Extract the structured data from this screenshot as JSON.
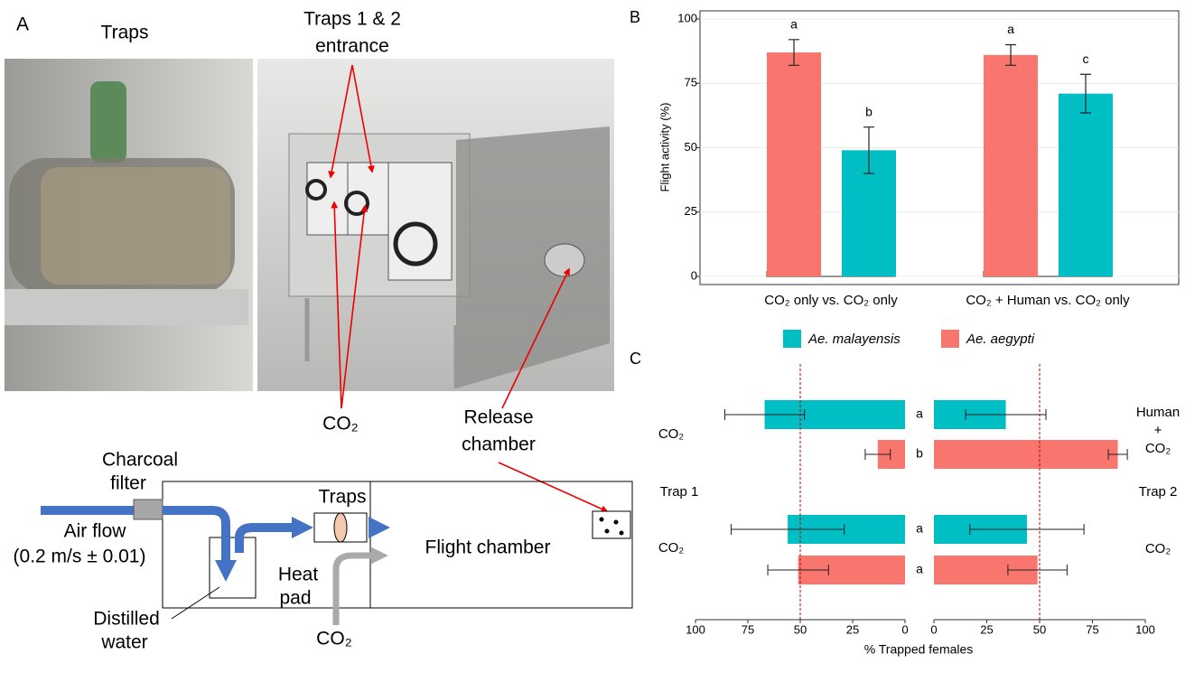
{
  "panel_a": {
    "label": "A",
    "photo_labels": {
      "traps": "Traps",
      "entrance_1": "Traps 1 & 2",
      "entrance_2": "entrance",
      "co2": "CO₂",
      "release_1": "Release",
      "release_2": "chamber"
    }
  },
  "diagram": {
    "charcoal_1": "Charcoal",
    "charcoal_2": "filter",
    "air_1": "Air flow",
    "air_2": "(0.2 m/s ± 0.01)",
    "traps": "Traps",
    "flight": "Flight chamber",
    "heat_1": "Heat",
    "heat_2": "pad",
    "water_1": "Distilled",
    "water_2": "water",
    "co2": "CO₂"
  },
  "chart_data": [
    {
      "type": "bar",
      "label": "B",
      "ylabel": "Flight activity (%)",
      "categories": [
        "CO₂ only vs. CO₂ only",
        "CO₂ + Human vs. CO₂ only"
      ],
      "series": [
        {
          "name": "Ae. aegypti",
          "color": "#f8766d",
          "values": [
            87,
            86
          ],
          "errors": [
            5,
            4
          ],
          "letters": [
            "a",
            "a"
          ]
        },
        {
          "name": "Ae. malayensis",
          "color": "#00bfc4",
          "values": [
            49,
            71
          ],
          "errors": [
            9,
            7.5
          ],
          "letters": [
            "b",
            "c"
          ]
        }
      ],
      "legend_order": [
        1,
        0
      ],
      "ylim": [
        0,
        100
      ],
      "yticks": [
        0,
        25,
        50,
        75,
        100
      ],
      "grid": true
    },
    {
      "type": "butterfly",
      "label": "C",
      "xlabel": "% Trapped females",
      "trap_labels": [
        "Trap 1",
        "Trap 2"
      ],
      "left_labels": [
        [
          "CO₂"
        ],
        [
          "CO₂"
        ]
      ],
      "right_labels": [
        [
          "Human",
          "+",
          "CO₂"
        ],
        [
          "CO₂"
        ]
      ],
      "rows": [
        {
          "color": "#00bfc4",
          "trap1": 67,
          "trap1_err": 19,
          "trap2": 34,
          "trap2_err": 19,
          "letter": "a"
        },
        {
          "color": "#f8766d",
          "trap1": 13,
          "trap1_err": 6,
          "trap2": 87,
          "trap2_err": 4.5,
          "letter": "b"
        },
        {
          "color": "#00bfc4",
          "trap1": 56,
          "trap1_err": 27,
          "trap2": 44,
          "trap2_err": 27,
          "letter": "a"
        },
        {
          "color": "#f8766d",
          "trap1": 51,
          "trap1_err": 14.5,
          "trap2": 49,
          "trap2_err": 14,
          "letter": "a"
        }
      ],
      "reference": 50,
      "xlim_left": [
        100,
        0
      ],
      "xticks_left": [
        100,
        75,
        50,
        25,
        0
      ],
      "xlim_right": [
        0,
        100
      ],
      "xticks_right": [
        0,
        25,
        50,
        75,
        100
      ]
    }
  ]
}
